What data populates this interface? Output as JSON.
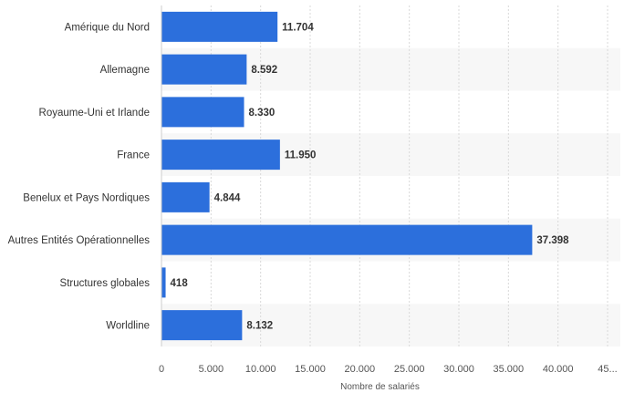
{
  "chart_data": {
    "type": "bar",
    "orientation": "horizontal",
    "categories": [
      "Amérique du Nord",
      "Allemagne",
      "Royaume-Uni et Irlande",
      "France",
      "Benelux et Pays Nordiques",
      "Autres Entités Opérationnelles",
      "Structures globales",
      "Worldline"
    ],
    "values": [
      11704,
      8592,
      8330,
      11950,
      4844,
      37398,
      418,
      8132
    ],
    "value_labels": [
      "11.704",
      "8.592",
      "8.330",
      "11.950",
      "4.844",
      "37.398",
      "418",
      "8.132"
    ],
    "xlabel": "Nombre de salariés",
    "xlim": [
      0,
      45000
    ],
    "x_ticks": [
      0,
      5000,
      10000,
      15000,
      20000,
      25000,
      30000,
      35000,
      40000,
      45000
    ],
    "x_tick_labels": [
      "0",
      "5.000",
      "10.000",
      "15.000",
      "20.000",
      "25.000",
      "30.000",
      "35.000",
      "40.000",
      "45..."
    ],
    "grid": "vertical dashed",
    "bar_color": "#2c6fdc",
    "band_color": "#f7f7f7"
  }
}
